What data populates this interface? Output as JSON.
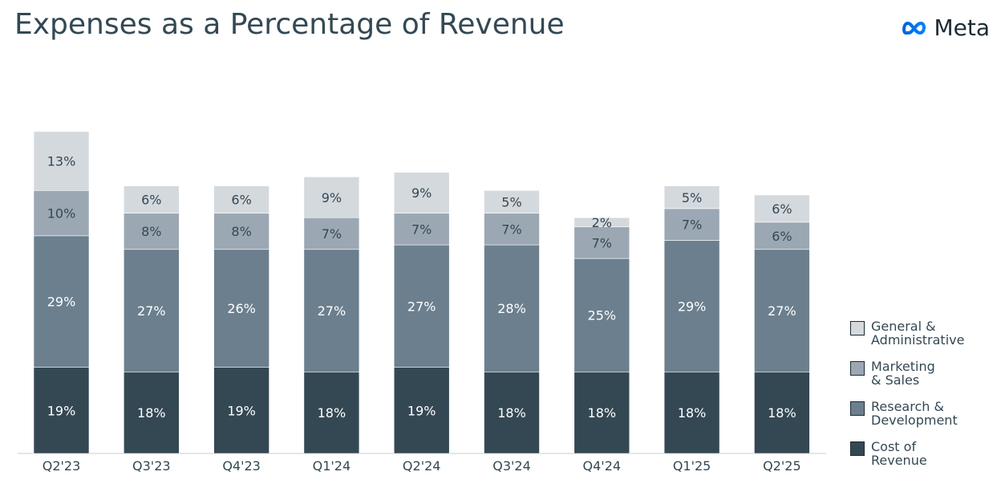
{
  "slide": {
    "title": "Expenses as a Percentage of Revenue",
    "brand": "Meta"
  },
  "icons": {
    "brand_logo": "meta-infinity-logo",
    "brand_logo_color": "#0668E1"
  },
  "colors": {
    "general_admin": "#d4d9de",
    "marketing_sales": "#9ba8b3",
    "research_development": "#6b7f8e",
    "cost_of_revenue": "#344854"
  },
  "legend": [
    {
      "label": "General &\nAdministrative",
      "color": "#d4d9de"
    },
    {
      "label": "Marketing\n& Sales",
      "color": "#9ba8b3"
    },
    {
      "label": "Research &\nDevelopment",
      "color": "#6b7f8e"
    },
    {
      "label": "Cost of\nRevenue",
      "color": "#344854"
    }
  ],
  "chart_data": {
    "type": "bar",
    "stacked": true,
    "categories": [
      "Q2'23",
      "Q3'23",
      "Q4'23",
      "Q1'24",
      "Q2'24",
      "Q3'24",
      "Q4'24",
      "Q1'25",
      "Q2'25"
    ],
    "series": [
      {
        "name": "Cost of Revenue",
        "color": "#344854",
        "values": [
          19,
          18,
          19,
          18,
          19,
          18,
          18,
          18,
          18
        ]
      },
      {
        "name": "Research & Development",
        "color": "#6b7f8e",
        "values": [
          29,
          27,
          26,
          27,
          27,
          28,
          25,
          29,
          27
        ]
      },
      {
        "name": "Marketing & Sales",
        "color": "#9ba8b3",
        "values": [
          10,
          8,
          8,
          7,
          7,
          7,
          7,
          7,
          6
        ]
      },
      {
        "name": "General & Administrative",
        "color": "#d4d9de",
        "values": [
          13,
          6,
          6,
          9,
          9,
          5,
          2,
          5,
          6
        ]
      }
    ],
    "value_suffix": "%",
    "legend_position": "right",
    "grid": false,
    "ylim": [
      0,
      72
    ]
  }
}
